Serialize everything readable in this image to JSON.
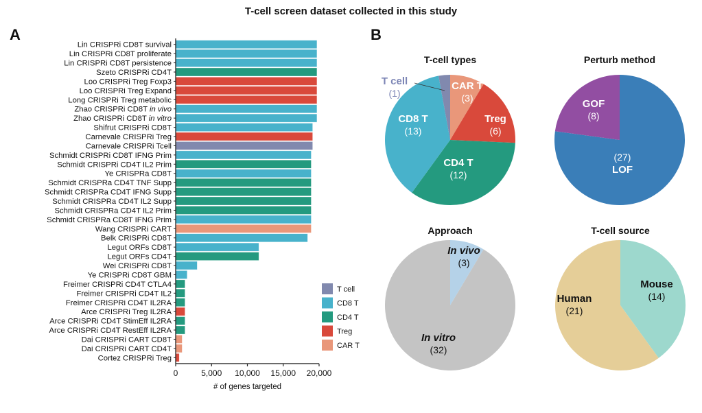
{
  "title": "T-cell screen dataset collected in this study",
  "panel_labels": {
    "a": "A",
    "b": "B"
  },
  "colors": {
    "T cell": "#8189ae",
    "CD8 T": "#48b2cb",
    "CD4 T": "#249a7f",
    "Treg": "#d9493b",
    "CAR T": "#e9977a",
    "LOF": "#3a7eb8",
    "GOF": "#924ea2",
    "In vitro": "#c4c4c4",
    "In vivo": "#b5d2e8",
    "Human": "#e5ce98",
    "Mouse": "#9dd8cd"
  },
  "chart_data": [
    {
      "type": "bar",
      "orientation": "horizontal",
      "title": "",
      "xlabel": "# of genes targeted",
      "ylabel": "",
      "xlim": [
        0,
        20000
      ],
      "xticks": [
        0,
        5000,
        10000,
        15000,
        20000
      ],
      "xtick_labels": [
        "0",
        "5,000",
        "10,000",
        "15,000",
        "20,000"
      ],
      "grid": false,
      "legend_position": "bottom-right",
      "legend": [
        "T cell",
        "CD8 T",
        "CD4 T",
        "Treg",
        "CAR T"
      ],
      "categories": [
        {
          "label": "Lin CRISPRi CD8T survival",
          "italic": ""
        },
        {
          "label": "Lin CRISPRi CD8T proliferate",
          "italic": ""
        },
        {
          "label": "Lin CRISPRi CD8T persistence",
          "italic": ""
        },
        {
          "label": "Szeto CRISPRi CD4T",
          "italic": ""
        },
        {
          "label": "Loo CRISPRi Treg Foxp3",
          "italic": ""
        },
        {
          "label": "Loo CRISPRi  Treg Expand",
          "italic": ""
        },
        {
          "label": "Long CRISPRi Treg metabolic",
          "italic": ""
        },
        {
          "label": "Zhao CRISPRi CD8T ",
          "italic": "in vivo"
        },
        {
          "label": "Zhao CRISPRi CD8T ",
          "italic": "in vitro"
        },
        {
          "label": "Shifrut CRISPRi CD8T",
          "italic": ""
        },
        {
          "label": "Carnevale CRISPRi Treg",
          "italic": ""
        },
        {
          "label": "Carnevale CRISPRi Tcell",
          "italic": ""
        },
        {
          "label": "Schmidt CRISPRi CD8T IFNG Prim",
          "italic": ""
        },
        {
          "label": "Schmidt CRISPRi CD4T IL2 Prim",
          "italic": ""
        },
        {
          "label": "Ye CRISPRa CD8T",
          "italic": ""
        },
        {
          "label": "Schmidt CRISPRa CD4T TNF Supp",
          "italic": ""
        },
        {
          "label": "Schmidt CRISPRa CD4T IFNG Supp",
          "italic": ""
        },
        {
          "label": "Schmidt CRISPRa CD4T IL2 Supp",
          "italic": ""
        },
        {
          "label": "Schmidt CRISPRa CD4T IL2 Prim",
          "italic": ""
        },
        {
          "label": "Schmidt CRISPRa CD8T IFNG Prim",
          "italic": ""
        },
        {
          "label": "Wang CRISPRi CART",
          "italic": ""
        },
        {
          "label": "Belk CRISPRi CD8T",
          "italic": ""
        },
        {
          "label": "Legut ORFs CD8T",
          "italic": ""
        },
        {
          "label": "Legut ORFs CD4T",
          "italic": ""
        },
        {
          "label": "Wei CRISPRi CD8T",
          "italic": ""
        },
        {
          "label": "Ye CRISPRi CD8T GBM",
          "italic": ""
        },
        {
          "label": "Freimer CRISPRi CD4T CTLA4",
          "italic": ""
        },
        {
          "label": "Freimer  CRISPRi CD4T IL2",
          "italic": ""
        },
        {
          "label": "Freimer CRISPRi CD4T IL2RA",
          "italic": ""
        },
        {
          "label": "Arce CRISPRi Treg IL2RA",
          "italic": ""
        },
        {
          "label": "Arce CRISPRi CD4T StimEff IL2RA",
          "italic": ""
        },
        {
          "label": "Arce CRISPRi CD4T RestEff IL2RA",
          "italic": ""
        },
        {
          "label": "Dai CRISPRi CART CD8T",
          "italic": ""
        },
        {
          "label": "Dai CRISPRi CART CD4T",
          "italic": ""
        },
        {
          "label": "Cortez CRISPRi Treg",
          "italic": ""
        }
      ],
      "values": [
        19700,
        19700,
        19700,
        19700,
        19700,
        19700,
        19700,
        19700,
        19700,
        19100,
        19100,
        19100,
        18900,
        18900,
        18900,
        18900,
        18900,
        18900,
        18900,
        18900,
        18900,
        18400,
        11600,
        11600,
        3000,
        1600,
        1300,
        1300,
        1300,
        1300,
        1300,
        1300,
        900,
        900,
        500
      ],
      "groups": [
        "CD8 T",
        "CD8 T",
        "CD8 T",
        "CD4 T",
        "Treg",
        "Treg",
        "Treg",
        "CD8 T",
        "CD8 T",
        "CD8 T",
        "Treg",
        "T cell",
        "CD8 T",
        "CD4 T",
        "CD8 T",
        "CD4 T",
        "CD4 T",
        "CD4 T",
        "CD4 T",
        "CD8 T",
        "CAR T",
        "CD8 T",
        "CD8 T",
        "CD4 T",
        "CD8 T",
        "CD8 T",
        "CD4 T",
        "CD4 T",
        "CD4 T",
        "Treg",
        "CD4 T",
        "CD4 T",
        "CAR T",
        "CAR T",
        "Treg"
      ]
    },
    {
      "type": "pie",
      "title": "T-cell types",
      "slices": [
        {
          "name": "CAR T",
          "value": 3,
          "count_label": "(3)"
        },
        {
          "name": "Treg",
          "value": 6,
          "count_label": "(6)"
        },
        {
          "name": "CD4 T",
          "value": 12,
          "count_label": "(12)"
        },
        {
          "name": "CD8 T",
          "value": 13,
          "count_label": "(13)"
        },
        {
          "name": "T cell",
          "value": 1,
          "count_label": "(1)"
        }
      ]
    },
    {
      "type": "pie",
      "title": "Perturb method",
      "slices": [
        {
          "name": "LOF",
          "value": 27,
          "count_label": "(27)"
        },
        {
          "name": "GOF",
          "value": 8,
          "count_label": "(8)"
        }
      ]
    },
    {
      "type": "pie",
      "title": "Approach",
      "slices": [
        {
          "name": "In vivo",
          "value": 3,
          "count_label": "(3)"
        },
        {
          "name": "In vitro",
          "value": 32,
          "count_label": "(32)"
        }
      ]
    },
    {
      "type": "pie",
      "title": "T-cell source",
      "slices": [
        {
          "name": "Mouse",
          "value": 14,
          "count_label": "(14)"
        },
        {
          "name": "Human",
          "value": 21,
          "count_label": "(21)"
        }
      ]
    }
  ]
}
